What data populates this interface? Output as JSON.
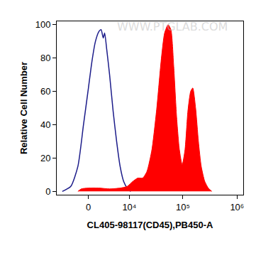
{
  "chart_data": {
    "type": "area",
    "x_label": "CL405-98117(CD45),PB450-A",
    "y_label": "Relative Cell Number",
    "annotations": [
      "WWW.PTGLAB.COM"
    ],
    "xlim": [
      -6500,
      1300000
    ],
    "xticks": [
      0,
      {
        "value": 10000,
        "label": "10⁴"
      },
      {
        "value": 100000,
        "label": "10⁵"
      },
      {
        "value": 1000000,
        "label": "10⁶"
      }
    ],
    "ylim": [
      -2,
      102
    ],
    "yticks": [
      0,
      20,
      40,
      60,
      80,
      100
    ],
    "grid": false,
    "series": [
      {
        "type": "line",
        "color": "#1c1c8a",
        "x": [
          -4910,
          -2980,
          -1680,
          -765,
          0,
          545,
          1100,
          1685,
          2050,
          2435,
          2700,
          3120,
          3720,
          4550,
          5460,
          6500,
          7690,
          9070,
          10630
        ],
        "values": [
          0,
          3,
          15,
          40,
          62,
          78,
          90,
          96,
          97,
          92,
          95,
          85,
          70,
          48,
          30,
          15,
          6,
          2,
          0
        ]
      },
      {
        "type": "area",
        "color": "#ff0000",
        "x": [
          -1680,
          -1100,
          0,
          1685,
          3720,
          6500,
          9070,
          11690,
          14560,
          18000,
          21640,
          26750,
          33000,
          39600,
          46000,
          53440,
          60260,
          67900,
          76600,
          86400,
          97300,
          109600,
          123800,
          139400,
          152500,
          172000,
          193800,
          218500,
          253700,
          294800,
          342300
        ],
        "values": [
          0,
          1.5,
          2,
          2,
          1.5,
          2,
          3,
          6,
          8,
          8,
          12,
          25,
          50,
          78,
          95,
          100,
          97,
          75,
          45,
          25,
          16,
          25,
          48,
          60,
          62,
          50,
          30,
          15,
          6,
          2,
          0
        ]
      }
    ]
  }
}
